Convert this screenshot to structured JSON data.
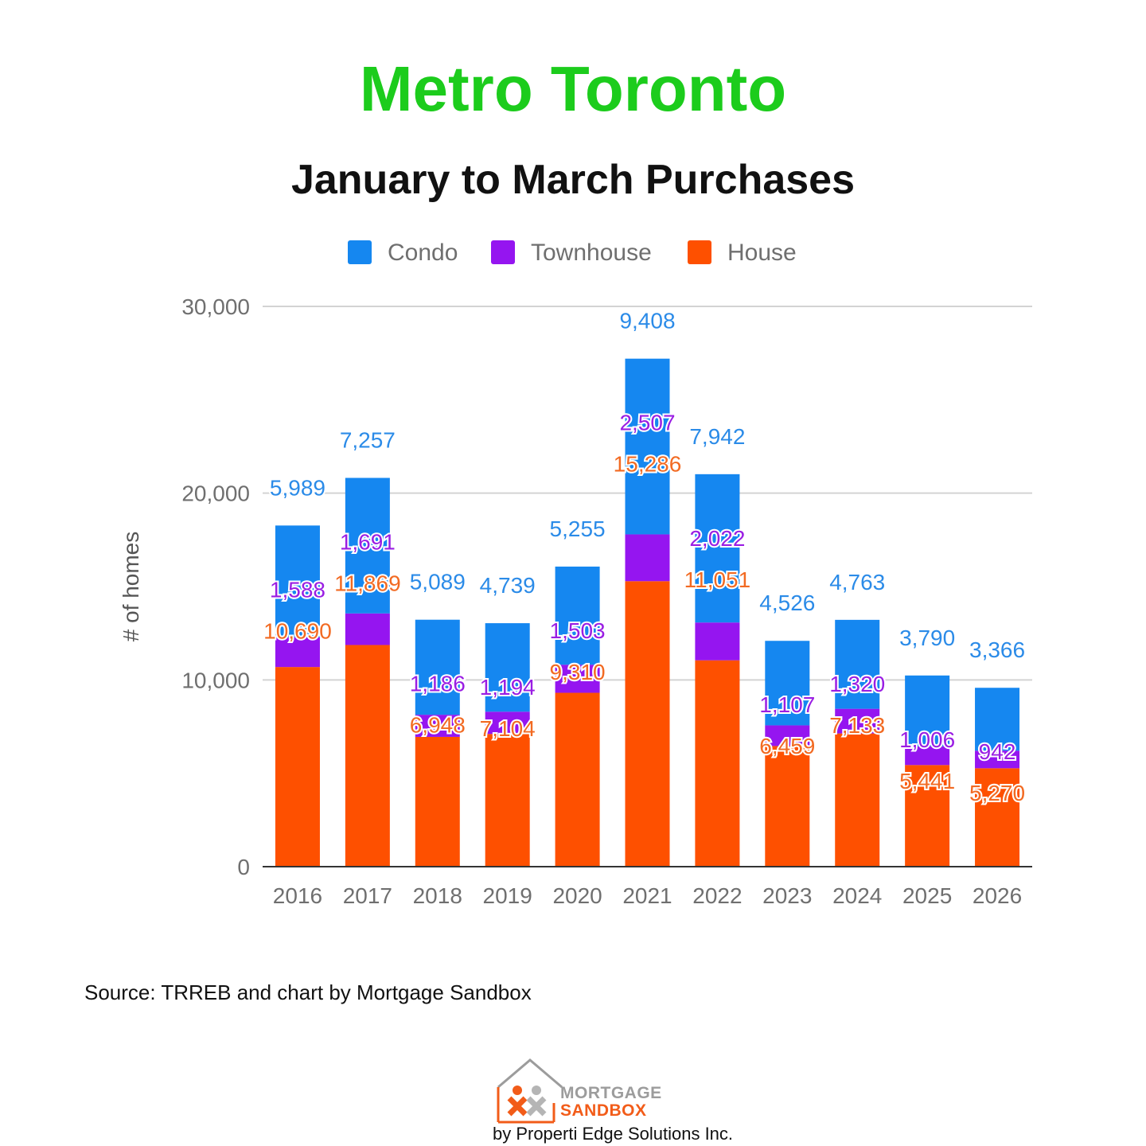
{
  "header": {
    "title": "Metro Toronto",
    "subtitle": "January to March Purchases"
  },
  "chart_data": {
    "type": "bar",
    "stacked": true,
    "title": "January to March Purchases",
    "xlabel": "",
    "ylabel": "# of homes",
    "ylim": [
      0,
      30000
    ],
    "yticks": [
      0,
      10000,
      20000,
      30000
    ],
    "ytick_labels": [
      "0",
      "10,000",
      "20,000",
      "30,000"
    ],
    "grid": true,
    "legend_position": "top-center",
    "categories": [
      "2016",
      "2017",
      "2018",
      "2019",
      "2020",
      "2021",
      "2022",
      "2023",
      "2024",
      "2025",
      "2026"
    ],
    "series": [
      {
        "name": "House",
        "color": "#fe5000",
        "values": [
          10690,
          11869,
          6948,
          7104,
          9310,
          15286,
          11051,
          6459,
          7133,
          5441,
          5270
        ],
        "labels": [
          "10,690",
          "11,869",
          "6,948",
          "7,104",
          "9,310",
          "15,286",
          "11,051",
          "6,459",
          "7,133",
          "5,441",
          "5,270"
        ],
        "label_color": "#f26a22"
      },
      {
        "name": "Townhouse",
        "color": "#9515f0",
        "values": [
          1588,
          1691,
          1186,
          1194,
          1503,
          2507,
          2022,
          1107,
          1320,
          1006,
          942
        ],
        "labels": [
          "1,588",
          "1,691",
          "1,186",
          "1,194",
          "1,503",
          "2,507",
          "2,022",
          "1,107",
          "1,320",
          "1,006",
          "942"
        ],
        "label_color": "#9a1ee3"
      },
      {
        "name": "Condo",
        "color": "#1587f0",
        "values": [
          5989,
          7257,
          5089,
          4739,
          5255,
          9408,
          7942,
          4526,
          4763,
          3790,
          3366
        ],
        "labels": [
          "5,989",
          "7,257",
          "5,089",
          "4,739",
          "5,255",
          "9,408",
          "7,942",
          "4,526",
          "4,763",
          "3,790",
          "3,366"
        ],
        "label_color": "#2b8be8"
      }
    ],
    "legend_order": [
      "Condo",
      "Townhouse",
      "House"
    ]
  },
  "footer": {
    "source": "Source: TRREB and chart by Mortgage Sandbox",
    "logo_line1": "MORTGAGE",
    "logo_line2": "SANDBOX",
    "byline": "by Properti Edge Solutions Inc."
  }
}
